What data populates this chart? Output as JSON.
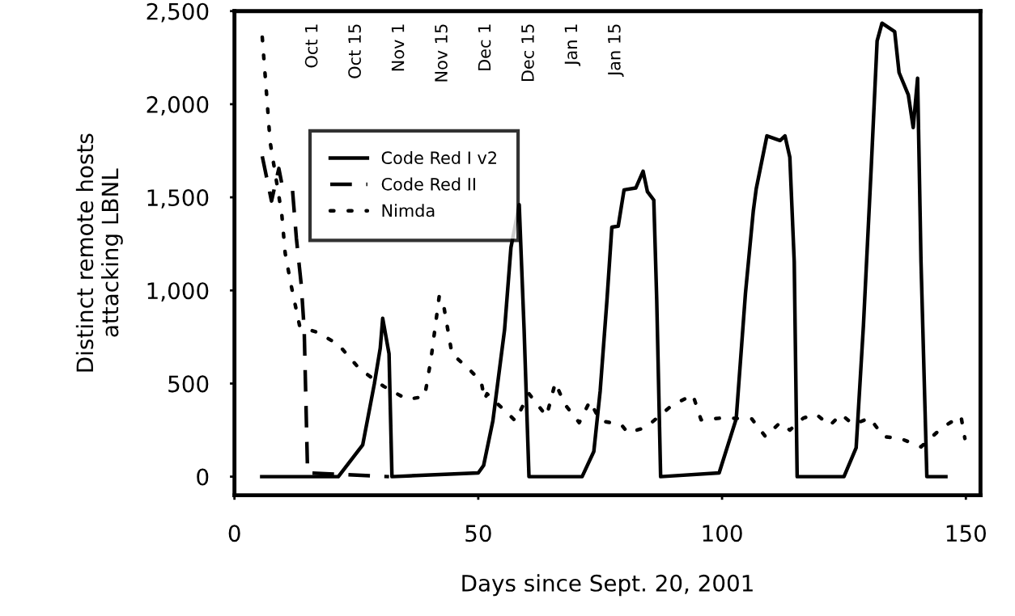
{
  "chart_data": {
    "type": "line",
    "xlabel": "Days since Sept. 20, 2001",
    "ylabel": "Distinct remote hosts\nattacking LBNL",
    "xlim": [
      0,
      153
    ],
    "xticks": [
      0,
      50,
      100,
      150
    ],
    "ylim": [
      -100,
      2500
    ],
    "yticks": [
      0,
      {
        "value": 500,
        "label": "500"
      },
      {
        "value": 1000,
        "label": "1,000"
      },
      {
        "value": 1500,
        "label": "1,500"
      },
      {
        "value": 2000,
        "label": "2,000"
      },
      {
        "value": 2500,
        "label": "2,500"
      }
    ],
    "grid": false,
    "legend": "top left",
    "marker": "none",
    "annotations": [
      "Oct 1",
      "Oct 15",
      "Nov 1",
      "Nov 15",
      "Dec 1",
      "Dec 15",
      "Jan 1",
      "Jan 15"
    ],
    "series": [
      {
        "name": "Code Red I v2",
        "color": "#000000",
        "line_style": "solid",
        "x": [
          5.6,
          21.3,
          26.3,
          28.7,
          29.9,
          30.4,
          31.7,
          32.3,
          50.0,
          51.1,
          53.0,
          55.4,
          56.7,
          58.4,
          59.4,
          60.4,
          71.3,
          73.7,
          75.0,
          76.4,
          77.4,
          78.7,
          79.9,
          82.3,
          83.8,
          84.7,
          86.0,
          86.6,
          87.4,
          99.4,
          102.9,
          104.8,
          106.4,
          107.0,
          109.2,
          111.9,
          112.9,
          113.9,
          114.8,
          115.4,
          125.0,
          127.5,
          129.0,
          130.6,
          131.8,
          132.8,
          135.4,
          136.3,
          138.2,
          139.2,
          140.1,
          140.8,
          142.0,
          145.9
        ],
        "values": [
          0,
          0,
          170,
          500,
          690,
          850,
          660,
          0,
          20,
          60,
          300,
          790,
          1230,
          1460,
          790,
          0,
          0,
          135,
          460,
          950,
          1340,
          1345,
          1540,
          1550,
          1640,
          1530,
          1485,
          950,
          0,
          20,
          310,
          985,
          1425,
          1545,
          1830,
          1805,
          1830,
          1715,
          1155,
          0,
          0,
          155,
          815,
          1665,
          2340,
          2435,
          2390,
          2170,
          2050,
          1875,
          2140,
          1155,
          0,
          0
        ]
      },
      {
        "name": "Code Red II",
        "color": "#000000",
        "line_style": "dashed",
        "x": [
          5.7,
          7.6,
          9.1,
          9.7,
          11.9,
          12.7,
          13.7,
          14.3,
          15.0,
          31.7
        ],
        "values": [
          1720,
          1480,
          1655,
          1575,
          1540,
          1280,
          1030,
          790,
          20,
          0
        ]
      },
      {
        "name": "Nimda",
        "color": "#000000",
        "line_style": "dotted",
        "x": [
          5.7,
          6.7,
          7.3,
          9.7,
          10.4,
          11.6,
          13.4,
          17.0,
          21.3,
          25.6,
          30.6,
          35.4,
          39.0,
          40.3,
          42.0,
          43.0,
          44.6,
          48.2,
          50.6,
          51.3,
          51.8,
          57.6,
          60.4,
          64.0,
          65.8,
          67.7,
          70.7,
          72.9,
          75.0,
          79.3,
          80.7,
          84.4,
          89.6,
          94.0,
          95.7,
          100.0,
          106.1,
          108.9,
          111.9,
          113.9,
          116.7,
          119.3,
          122.1,
          124.4,
          126.9,
          130.3,
          133.1,
          136.6,
          140.8,
          145.2,
          149.0,
          149.8
        ],
        "values": [
          2360,
          2015,
          1800,
          1410,
          1200,
          1030,
          805,
          775,
          710,
          580,
          485,
          415,
          430,
          630,
          970,
          905,
          660,
          575,
          510,
          415,
          445,
          300,
          445,
          325,
          505,
          390,
          290,
          405,
          300,
          280,
          235,
          265,
          380,
          440,
          305,
          315,
          310,
          215,
          290,
          250,
          315,
          335,
          275,
          335,
          280,
          315,
          215,
          205,
          160,
          265,
          325,
          205
        ]
      }
    ]
  }
}
